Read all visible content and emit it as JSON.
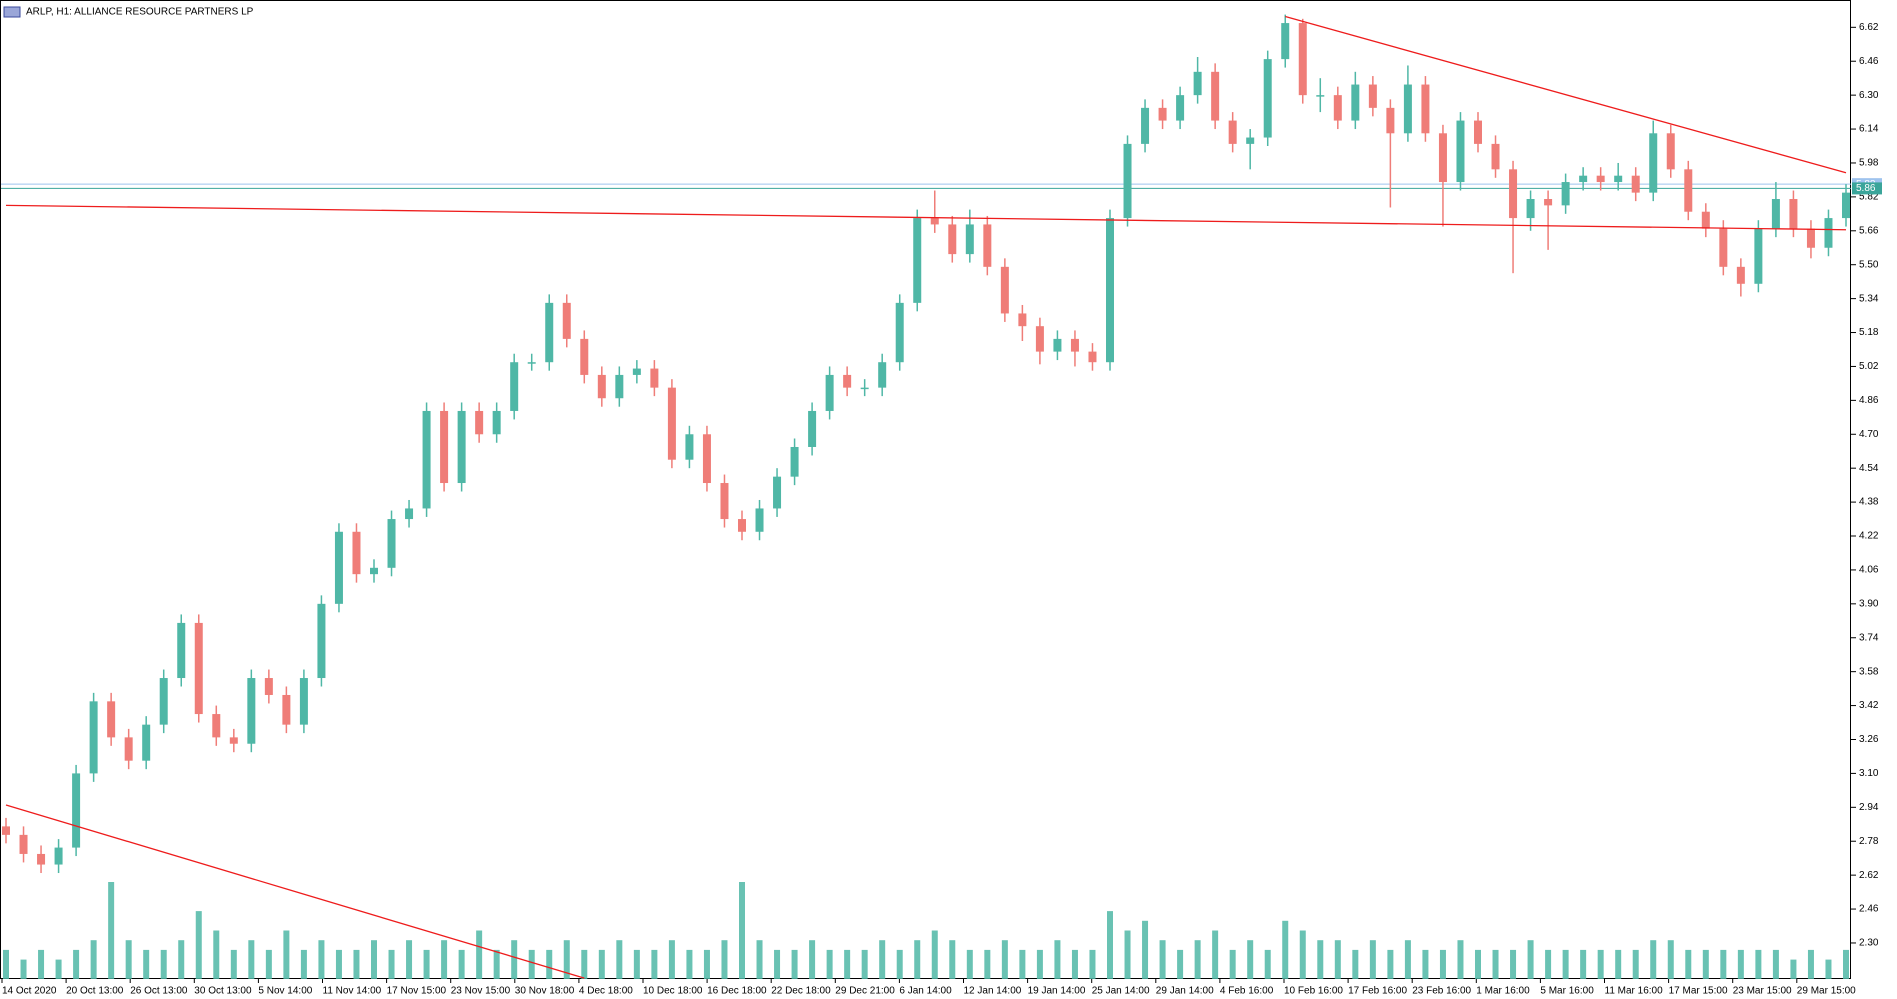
{
  "chart_data": {
    "type": "candlestick",
    "title": "ARLP, H1:  ALLIANCE RESOURCE PARTNERS LP",
    "up_color": "#4fb7a6",
    "down_color": "#ef7d78",
    "trend_color": "#ee1c1c",
    "ylim": [
      2.13,
      6.73
    ],
    "yticks": [
      {
        "value": 2.3,
        "label": "2.30"
      },
      2.46,
      2.62,
      2.78,
      2.94,
      {
        "value": 3.1,
        "label": "3.10"
      },
      3.26,
      3.42,
      3.58,
      3.74,
      {
        "value": 3.9,
        "label": "3.90"
      },
      4.06,
      4.22,
      4.38,
      4.54,
      {
        "value": 4.7,
        "label": "4.70"
      },
      4.86,
      5.02,
      5.18,
      5.34,
      {
        "value": 5.5,
        "label": "5.50"
      },
      5.66,
      5.82,
      5.98,
      6.14,
      {
        "value": 6.3,
        "label": "6.30"
      },
      6.46,
      6.62
    ],
    "x_labels": [
      "14 Oct 2020",
      "20 Oct 13:00",
      "26 Oct 13:00",
      "30 Oct 13:00",
      "5 Nov 14:00",
      "11 Nov 14:00",
      "17 Nov 15:00",
      "23 Nov 15:00",
      "30 Nov 18:00",
      "4 Dec 18:00",
      "10 Dec 18:00",
      "16 Dec 18:00",
      "22 Dec 18:00",
      "29 Dec 21:00",
      "6 Jan 14:00",
      "12 Jan 14:00",
      "19 Jan 14:00",
      "25 Jan 14:00",
      "29 Jan 14:00",
      "4 Feb 16:00",
      "10 Feb 16:00",
      "17 Feb 16:00",
      "23 Feb 16:00",
      "1 Mar 16:00",
      "5 Mar 16:00",
      "11 Mar 16:00",
      "17 Mar 15:00",
      "23 Mar 15:00",
      "29 Mar 15:00"
    ],
    "open": [
      2.85,
      2.81,
      2.72,
      2.67,
      2.75,
      3.1,
      3.44,
      3.27,
      3.16,
      3.33,
      3.55,
      3.81,
      3.38,
      3.27,
      3.24,
      3.55,
      3.47,
      3.33,
      3.55,
      3.9,
      4.24,
      4.04,
      4.07,
      4.3,
      4.35,
      4.81,
      4.47,
      4.81,
      4.7,
      4.81,
      5.04,
      5.04,
      5.32,
      5.15,
      4.98,
      4.87,
      4.98,
      5.01,
      4.92,
      4.58,
      4.7,
      4.47,
      4.3,
      4.24,
      4.35,
      4.5,
      4.64,
      4.81,
      4.98,
      4.92,
      4.92,
      5.04,
      5.32,
      5.72,
      5.69,
      5.55,
      5.69,
      5.49,
      5.27,
      5.21,
      5.09,
      5.15,
      5.09,
      5.04,
      5.72,
      6.07,
      6.24,
      6.18,
      6.3,
      6.41,
      6.18,
      6.07,
      6.1,
      6.47,
      6.64,
      6.3,
      6.3,
      6.18,
      6.35,
      6.24,
      6.12,
      6.35,
      6.12,
      5.89,
      6.18,
      6.07,
      5.95,
      5.72,
      5.81,
      5.78,
      5.89,
      5.92,
      5.89,
      5.92,
      5.84,
      6.12,
      5.95,
      5.75,
      5.67,
      5.49,
      5.41,
      5.67,
      5.81,
      5.67,
      5.58,
      5.72
    ],
    "high": [
      2.89,
      2.85,
      2.76,
      2.79,
      3.14,
      3.48,
      3.48,
      3.31,
      3.37,
      3.59,
      3.85,
      3.85,
      3.42,
      3.31,
      3.59,
      3.59,
      3.51,
      3.59,
      3.94,
      4.28,
      4.28,
      4.11,
      4.34,
      4.39,
      4.85,
      4.85,
      4.85,
      4.85,
      4.85,
      5.08,
      5.08,
      5.36,
      5.36,
      5.19,
      5.02,
      5.02,
      5.05,
      5.05,
      4.96,
      4.74,
      4.74,
      4.51,
      4.34,
      4.39,
      4.54,
      4.68,
      4.85,
      5.02,
      5.02,
      4.96,
      5.08,
      5.36,
      5.76,
      5.85,
      5.73,
      5.76,
      5.73,
      5.53,
      5.31,
      5.25,
      5.19,
      5.19,
      5.13,
      5.76,
      6.11,
      6.28,
      6.28,
      6.34,
      6.48,
      6.45,
      6.22,
      6.14,
      6.51,
      6.68,
      6.66,
      6.38,
      6.34,
      6.41,
      6.39,
      6.28,
      6.44,
      6.39,
      6.16,
      6.22,
      6.22,
      6.11,
      5.99,
      5.85,
      5.85,
      5.93,
      5.96,
      5.96,
      5.98,
      5.96,
      6.18,
      6.16,
      5.99,
      5.79,
      5.71,
      5.53,
      5.71,
      5.89,
      5.85,
      5.71,
      5.76,
      5.88
    ],
    "low": [
      2.77,
      2.68,
      2.63,
      2.63,
      2.71,
      3.06,
      3.23,
      3.12,
      3.12,
      3.29,
      3.51,
      3.34,
      3.23,
      3.2,
      3.2,
      3.43,
      3.29,
      3.29,
      3.51,
      3.86,
      4.0,
      4.0,
      4.03,
      4.26,
      4.31,
      4.43,
      4.43,
      4.66,
      4.66,
      4.77,
      5.0,
      5.0,
      5.11,
      4.94,
      4.83,
      4.83,
      4.94,
      4.88,
      4.54,
      4.54,
      4.43,
      4.26,
      4.2,
      4.2,
      4.31,
      4.46,
      4.6,
      4.77,
      4.88,
      4.88,
      4.88,
      5.0,
      5.28,
      5.65,
      5.51,
      5.51,
      5.45,
      5.23,
      5.14,
      5.03,
      5.05,
      5.02,
      5.0,
      5.0,
      5.68,
      6.03,
      6.14,
      6.14,
      6.26,
      6.14,
      6.03,
      5.95,
      6.06,
      6.43,
      6.26,
      6.22,
      6.14,
      6.14,
      6.2,
      5.77,
      6.08,
      6.08,
      5.68,
      5.85,
      6.03,
      5.91,
      5.46,
      5.66,
      5.57,
      5.74,
      5.85,
      5.85,
      5.85,
      5.8,
      5.8,
      5.91,
      5.71,
      5.63,
      5.45,
      5.35,
      5.37,
      5.63,
      5.63,
      5.53,
      5.54,
      5.68
    ],
    "close": [
      2.81,
      2.72,
      2.67,
      2.75,
      3.1,
      3.44,
      3.27,
      3.16,
      3.33,
      3.55,
      3.81,
      3.38,
      3.27,
      3.24,
      3.55,
      3.47,
      3.33,
      3.55,
      3.9,
      4.24,
      4.04,
      4.07,
      4.3,
      4.35,
      4.81,
      4.47,
      4.81,
      4.7,
      4.81,
      5.04,
      5.04,
      5.32,
      5.15,
      4.98,
      4.87,
      4.98,
      5.01,
      4.92,
      4.58,
      4.7,
      4.47,
      4.3,
      4.24,
      4.35,
      4.5,
      4.64,
      4.81,
      4.98,
      4.92,
      4.92,
      5.04,
      5.32,
      5.72,
      5.69,
      5.55,
      5.69,
      5.49,
      5.27,
      5.21,
      5.09,
      5.15,
      5.09,
      5.04,
      5.72,
      6.07,
      6.24,
      6.18,
      6.3,
      6.41,
      6.18,
      6.07,
      6.1,
      6.47,
      6.64,
      6.3,
      6.3,
      6.18,
      6.35,
      6.24,
      6.12,
      6.35,
      6.12,
      5.89,
      6.18,
      6.07,
      5.95,
      5.72,
      5.81,
      5.78,
      5.89,
      5.92,
      5.89,
      5.92,
      5.84,
      6.12,
      5.95,
      5.75,
      5.67,
      5.49,
      5.41,
      5.67,
      5.81,
      5.67,
      5.58,
      5.72,
      5.84
    ],
    "volume": [
      3,
      2,
      3,
      2,
      3,
      4,
      10,
      4,
      3,
      3,
      4,
      7,
      5,
      3,
      4,
      3,
      5,
      3,
      4,
      3,
      3,
      4,
      3,
      4,
      3,
      4,
      3,
      5,
      3,
      4,
      3,
      3,
      4,
      3,
      3,
      4,
      3,
      3,
      4,
      3,
      3,
      4,
      10,
      4,
      3,
      3,
      4,
      3,
      3,
      3,
      4,
      3,
      4,
      5,
      4,
      3,
      3,
      4,
      3,
      3,
      4,
      3,
      3,
      7,
      5,
      6,
      4,
      3,
      4,
      5,
      3,
      4,
      3,
      6,
      5,
      4,
      4,
      3,
      4,
      3,
      4,
      3,
      3,
      4,
      3,
      3,
      3,
      4,
      3,
      3,
      3,
      3,
      3,
      3,
      4,
      4,
      3,
      3,
      3,
      3,
      3,
      3,
      2,
      3,
      2,
      3
    ],
    "ask": 5.88,
    "bid": 5.86,
    "trendlines": [
      {
        "x": [
          0,
          105
        ],
        "y": [
          5.78,
          5.665
        ]
      },
      {
        "x": [
          73,
          105
        ],
        "y": [
          6.671,
          5.934
        ]
      },
      {
        "x": [
          0,
          33
        ],
        "y": [
          2.951,
          2.134
        ]
      }
    ]
  }
}
